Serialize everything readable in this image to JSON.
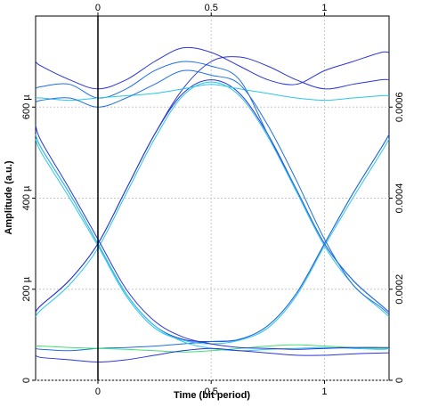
{
  "chart_data": {
    "type": "line",
    "xlabel": "Time (bit period)",
    "ylabel": "Amplitude (a.u.)",
    "x": [
      -0.275,
      -0.25,
      -0.125,
      0,
      0.125,
      0.25,
      0.375,
      0.5,
      0.625,
      0.75,
      0.875,
      1,
      1.125,
      1.25,
      1.285
    ],
    "xlim": [
      -0.275,
      1.285
    ],
    "xticks": [
      0,
      0.5,
      1
    ],
    "ylim": [
      0,
      0.0008
    ],
    "yticks": [
      0,
      {
        "value": 0.0002,
        "label": "200 µ"
      },
      {
        "value": 0.0004,
        "label": "400 µ"
      },
      {
        "value": 0.0006,
        "label": "600 µ"
      }
    ],
    "y2lim": [
      0,
      0.0008
    ],
    "y2ticks": [
      0,
      0.0002,
      0.0004,
      0.0006
    ],
    "grid": true,
    "series": [
      {
        "color": "#2a35d8",
        "values": [
          0.00015,
          0.000165,
          0.00022,
          0.0003,
          0.00042,
          0.00054,
          0.00063,
          0.00066,
          0.00063,
          0.00054,
          0.00042,
          0.0003,
          0.00022,
          0.000165,
          0.00015
        ]
      },
      {
        "color": "#28c8e8",
        "values": [
          0.00014,
          0.000155,
          0.00021,
          0.00029,
          0.00041,
          0.00053,
          0.000625,
          0.000655,
          0.000625,
          0.000535,
          0.000415,
          0.000295,
          0.00021,
          0.000155,
          0.00014
        ]
      },
      {
        "color": "#2a35d8",
        "values": [
          0.00054,
          0.00051,
          0.00041,
          0.0003,
          0.00019,
          0.00012,
          9e-05,
          8.5e-05,
          9e-05,
          0.00012,
          0.00019,
          0.0003,
          0.00041,
          0.00051,
          0.00054
        ]
      },
      {
        "color": "#28c8e8",
        "values": [
          0.00053,
          0.0005,
          0.0004,
          0.000295,
          0.000185,
          0.000115,
          8.8e-05,
          8e-05,
          8.8e-05,
          0.000115,
          0.000185,
          0.000295,
          0.0004,
          0.0005,
          0.00053
        ]
      },
      {
        "color": "#1e6fe0",
        "values": [
          0.00064,
          0.000645,
          0.00065,
          0.00062,
          0.00064,
          0.00068,
          0.0007,
          0.00069,
          0.00066,
          0.00054,
          0.00042,
          0.0003,
          0.00022,
          0.000165,
          0.00015
        ]
      },
      {
        "color": "#2a35d8",
        "values": [
          0.00015,
          0.000165,
          0.00022,
          0.0003,
          0.00042,
          0.00054,
          0.00064,
          0.0007,
          0.00071,
          0.00069,
          0.00066,
          0.00064,
          0.00065,
          0.00066,
          0.00066
        ]
      },
      {
        "color": "#1e6fe0",
        "values": [
          7e-05,
          6.8e-05,
          6.5e-05,
          7e-05,
          7.2e-05,
          7.5e-05,
          8e-05,
          8.5e-05,
          9e-05,
          0.00012,
          0.00019,
          0.0003,
          0.00041,
          0.00051,
          0.00054
        ]
      },
      {
        "color": "#28c8e8",
        "values": [
          0.00054,
          0.00051,
          0.00041,
          0.0003,
          0.00019,
          0.00012,
          8.5e-05,
          7e-05,
          6.5e-05,
          6.8e-05,
          7e-05,
          7.2e-05,
          7e-05,
          6.8e-05,
          7e-05
        ]
      },
      {
        "color": "#2a35d8",
        "values": [
          0.0007,
          0.00069,
          0.00066,
          0.00064,
          0.00066,
          0.0007,
          0.00073,
          0.00072,
          0.00069,
          0.00066,
          0.00065,
          0.00068,
          0.0007,
          0.00072,
          0.00072
        ]
      },
      {
        "color": "#28c8e8",
        "values": [
          0.00062,
          0.00062,
          0.000615,
          0.00062,
          0.000625,
          0.00063,
          0.00064,
          0.00065,
          0.00064,
          0.00063,
          0.00062,
          0.000615,
          0.00062,
          0.000625,
          0.000625
        ]
      },
      {
        "color": "#40e070",
        "values": [
          7.5e-05,
          7.5e-05,
          7.2e-05,
          7e-05,
          6.8e-05,
          6.5e-05,
          6.2e-05,
          6.5e-05,
          7e-05,
          7.5e-05,
          7.8e-05,
          7.5e-05,
          7.2e-05,
          7e-05,
          7e-05
        ]
      },
      {
        "color": "#2a35d8",
        "values": [
          5.5e-05,
          5e-05,
          4.5e-05,
          4e-05,
          4.5e-05,
          5.5e-05,
          6.5e-05,
          7e-05,
          6.5e-05,
          6e-05,
          5.5e-05,
          5.5e-05,
          5.8e-05,
          6e-05,
          6e-05
        ]
      },
      {
        "color": "#1e6fe0",
        "values": [
          0.00061,
          0.000615,
          0.00062,
          0.0006,
          0.00062,
          0.00065,
          0.00068,
          0.00067,
          0.00065,
          0.00056,
          0.00044,
          0.00031,
          0.00021,
          0.00016,
          0.000145
        ]
      },
      {
        "color": "#2a35d8",
        "values": [
          0.00056,
          0.000525,
          0.00042,
          0.00031,
          0.0002,
          0.00013,
          9.5e-05,
          8e-05,
          7.2e-05,
          7e-05,
          6.8e-05,
          7e-05,
          7.2e-05,
          7.2e-05,
          7.2e-05
        ]
      }
    ]
  }
}
